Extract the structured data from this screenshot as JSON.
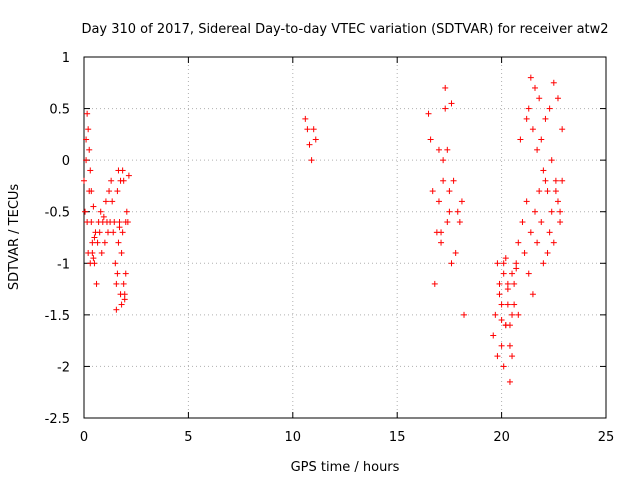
{
  "chart_data": {
    "type": "scatter",
    "title": "Day 310 of 2017, Sidereal Day-to-day VTEC variation (SDTVAR) for receiver atw2",
    "xlabel": "GPS time / hours",
    "ylabel": "SDTVAR / TECUs",
    "xlim": [
      0,
      25
    ],
    "ylim": [
      -2.5,
      1
    ],
    "xticks": [
      0,
      5,
      10,
      15,
      20,
      25
    ],
    "yticks": [
      1,
      0.5,
      0,
      -0.5,
      -1,
      -1.5,
      -2,
      -2.5
    ],
    "xtick_labels": [
      "0",
      "5",
      "10",
      "15",
      "20",
      "25"
    ],
    "ytick_labels": [
      "1",
      "0.5",
      "0",
      "-0.5",
      "-1",
      "-1.5",
      "-2",
      "-2.5"
    ],
    "grid": true,
    "marker": "+",
    "color": "#ff0000",
    "series": [
      {
        "name": "SDTVAR",
        "x": [
          0.0,
          0.05,
          0.1,
          0.15,
          0.2,
          0.25,
          0.3,
          0.35,
          0.4,
          0.45,
          0.5,
          0.55,
          0.6,
          0.65,
          0.7,
          0.75,
          0.8,
          0.85,
          0.9,
          0.95,
          1.0,
          1.05,
          1.1,
          1.15,
          1.2,
          1.25,
          1.3,
          1.35,
          1.4,
          1.45,
          1.5,
          1.55,
          1.6,
          1.65,
          1.7,
          1.75,
          1.8,
          1.85,
          1.9,
          1.95,
          2.0,
          2.05,
          2.1,
          2.15,
          0.1,
          0.15,
          0.2,
          0.25,
          0.3,
          0.35,
          0.4,
          0.45,
          0.5,
          1.55,
          1.6,
          1.65,
          1.7,
          1.75,
          1.8,
          1.85,
          1.9,
          1.95,
          2.0,
          10.6,
          10.7,
          10.8,
          10.9,
          11.0,
          11.1,
          16.5,
          16.6,
          16.7,
          16.8,
          16.9,
          17.0,
          17.1,
          17.2,
          17.3,
          17.4,
          17.5,
          17.6,
          17.7,
          17.8,
          17.9,
          18.0,
          18.1,
          18.2,
          17.0,
          17.1,
          17.2,
          17.3,
          17.4,
          17.5,
          17.6,
          19.6,
          19.7,
          19.8,
          19.9,
          20.0,
          20.1,
          20.2,
          20.3,
          20.4,
          20.5,
          20.6,
          20.7,
          20.8,
          20.9,
          21.0,
          21.1,
          21.2,
          21.3,
          21.4,
          21.5,
          21.6,
          21.7,
          21.8,
          21.9,
          22.0,
          22.1,
          22.2,
          22.3,
          22.4,
          22.5,
          22.6,
          22.7,
          22.8,
          22.9,
          21.2,
          21.3,
          21.4,
          21.5,
          21.6,
          21.7,
          21.8,
          21.9,
          22.0,
          22.1,
          22.2,
          22.3,
          22.4,
          22.5,
          22.6,
          22.7,
          22.8,
          22.9,
          20.0,
          20.1,
          20.2,
          20.3,
          20.4,
          20.5,
          19.8,
          19.9,
          20.0,
          20.1,
          20.2,
          20.3,
          20.4,
          20.5,
          20.6,
          20.7,
          20.8
        ],
        "y": [
          -0.2,
          -0.5,
          0.2,
          0.45,
          0.3,
          -0.3,
          -0.1,
          -0.6,
          -0.9,
          -0.95,
          -1.0,
          -0.7,
          -1.2,
          -0.8,
          -0.6,
          -0.7,
          -0.5,
          -0.9,
          -0.6,
          -0.55,
          -0.8,
          -0.4,
          -0.6,
          -0.7,
          -0.3,
          -0.6,
          -0.2,
          -0.4,
          -0.7,
          -0.6,
          -1.0,
          -1.2,
          -0.3,
          -0.1,
          -0.6,
          -0.2,
          -1.4,
          -0.7,
          -0.2,
          -1.3,
          -1.1,
          -0.5,
          -0.6,
          -0.15,
          0.0,
          -0.6,
          -0.9,
          0.1,
          -1.0,
          -0.3,
          -0.8,
          -0.45,
          -0.75,
          -1.45,
          -1.1,
          -0.8,
          -0.65,
          -1.3,
          -0.9,
          -0.1,
          -1.2,
          -1.35,
          -0.6,
          0.4,
          0.3,
          0.15,
          0.0,
          0.3,
          0.2,
          0.45,
          0.2,
          -0.3,
          -1.2,
          -0.7,
          -0.4,
          -0.8,
          0.0,
          0.5,
          -0.6,
          -0.3,
          -1.0,
          -0.2,
          -0.9,
          -0.5,
          -0.6,
          -0.4,
          -1.5,
          0.1,
          -0.7,
          -0.2,
          0.7,
          0.1,
          -0.5,
          0.55,
          -1.7,
          -1.5,
          -1.9,
          -1.2,
          -1.8,
          -2.0,
          -1.6,
          -1.4,
          -2.15,
          -1.5,
          -1.2,
          -1.0,
          -0.8,
          0.2,
          -0.6,
          -0.9,
          -0.4,
          -1.1,
          -0.7,
          -1.3,
          -0.5,
          -0.8,
          -0.3,
          -0.6,
          -1.0,
          -0.2,
          -0.9,
          -0.7,
          -0.5,
          -0.8,
          -0.3,
          -0.4,
          -0.6,
          -0.2,
          0.4,
          0.5,
          0.8,
          0.3,
          0.7,
          0.1,
          0.6,
          0.2,
          -0.1,
          0.4,
          -0.3,
          0.5,
          0.0,
          0.75,
          -0.2,
          0.6,
          -0.5,
          0.3,
          -1.4,
          -1.0,
          -1.6,
          -1.2,
          -1.8,
          -1.1,
          -1.0,
          -1.3,
          -1.55,
          -1.1,
          -0.95,
          -1.25,
          -1.6,
          -1.9,
          -1.4,
          -1.05,
          -1.5
        ]
      }
    ]
  }
}
